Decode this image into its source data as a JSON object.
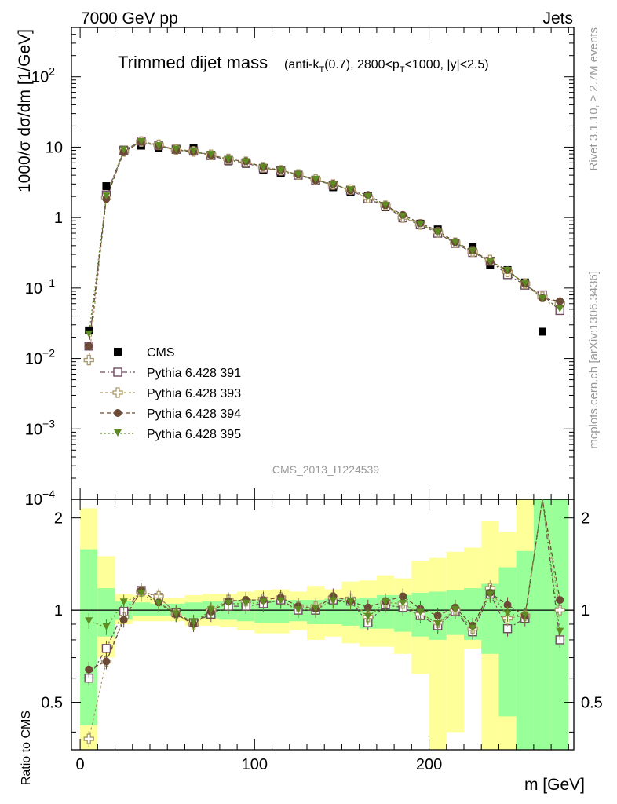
{
  "header": {
    "left": "7000 GeV pp",
    "right": "Jets"
  },
  "side_labels": {
    "rivet": "Rivet 3.1.10, ≥ 2.7M events",
    "mcplots": "mcplots.cern.ch [arXiv:1306.3436]"
  },
  "chart_data": {
    "type": "scatter",
    "title": "Trimmed dijet mass",
    "title_detail": "(anti-kT(0.7), 2800<pT<1000, |y|<2.5)",
    "analysis_id": "CMS_2013_I1224539",
    "xlabel": "m [GeV]",
    "ylabel": "1000/σ dσ/dm [1/GeV]",
    "ratio_ylabel": "Ratio to CMS",
    "xlim": [
      -5,
      283
    ],
    "ylim": [
      0.0001,
      500
    ],
    "yscale": "log",
    "ratio_ylim": [
      0.35,
      2.3
    ],
    "x_ticks": [
      0,
      100,
      200
    ],
    "y_ticks": [
      "10^-4",
      "10^-3",
      "10^-2",
      "10^-1",
      "1",
      "10",
      "10^2"
    ],
    "ratio_ticks": [
      "0.5",
      "1",
      "2"
    ],
    "legend_position": "bottom-left",
    "x": [
      5,
      15,
      25,
      35,
      45,
      55,
      65,
      75,
      85,
      95,
      105,
      115,
      125,
      135,
      145,
      155,
      165,
      175,
      185,
      195,
      205,
      215,
      225,
      235,
      245,
      255,
      265,
      275
    ],
    "series": [
      {
        "name": "CMS",
        "marker": "filled-square",
        "color": "#000000",
        "values": [
          0.025,
          2.8,
          9.2,
          10.5,
          9.8,
          9.5,
          9.6,
          7.8,
          6.3,
          5.8,
          4.8,
          4.3,
          4.0,
          3.4,
          2.7,
          2.3,
          2.05,
          1.4,
          0.98,
          0.82,
          0.68,
          0.44,
          0.38,
          0.21,
          0.18,
          0.12,
          0.024,
          0.06
        ]
      },
      {
        "name": "Pythia 6.428 391",
        "marker": "open-square",
        "color": "#6e4a5e",
        "values": [
          0.015,
          2.1,
          9.0,
          12.2,
          10.6,
          9.3,
          8.8,
          7.6,
          6.5,
          6.0,
          5.0,
          4.6,
          4.0,
          3.4,
          2.9,
          2.45,
          1.85,
          1.45,
          0.99,
          0.79,
          0.6,
          0.43,
          0.32,
          0.24,
          0.155,
          0.11,
          0.08,
          0.048
        ]
      },
      {
        "name": "Pythia 6.428 393",
        "marker": "open-cross",
        "color": "#a99766",
        "values": [
          0.0095,
          1.9,
          8.7,
          12.0,
          10.8,
          9.2,
          8.7,
          7.8,
          6.8,
          6.2,
          5.2,
          4.7,
          4.1,
          3.5,
          2.95,
          2.5,
          1.9,
          1.48,
          1.0,
          0.8,
          0.62,
          0.44,
          0.33,
          0.25,
          0.17,
          0.115,
          0.075,
          0.06
        ]
      },
      {
        "name": "Pythia 6.428 394",
        "marker": "filled-circle",
        "color": "#6b4a36",
        "values": [
          0.015,
          1.85,
          8.5,
          11.9,
          10.4,
          9.1,
          8.6,
          7.7,
          6.7,
          6.3,
          5.2,
          4.7,
          4.1,
          3.4,
          3.0,
          2.45,
          2.1,
          1.5,
          1.09,
          0.83,
          0.65,
          0.45,
          0.34,
          0.24,
          0.18,
          0.115,
          0.072,
          0.065
        ]
      },
      {
        "name": "Pythia 6.428 395",
        "marker": "filled-triangle-down",
        "color": "#5f8c22",
        "values": [
          0.022,
          2.0,
          9.0,
          11.8,
          10.3,
          9.2,
          8.7,
          7.8,
          6.6,
          6.1,
          5.1,
          4.6,
          4.0,
          3.45,
          2.9,
          2.45,
          1.95,
          1.48,
          1.03,
          0.8,
          0.61,
          0.44,
          0.33,
          0.235,
          0.175,
          0.115,
          0.07,
          0.05
        ]
      }
    ],
    "ratio_series": [
      {
        "name": "Pythia 6.428 391",
        "values": [
          0.6,
          0.75,
          0.99,
          1.16,
          1.1,
          0.98,
          0.91,
          0.97,
          1.03,
          1.03,
          1.05,
          1.08,
          1.0,
          1.0,
          1.08,
          1.07,
          0.91,
          1.04,
          1.02,
          0.96,
          0.89,
          0.99,
          0.85,
          1.13,
          0.87,
          0.94,
          2.5,
          0.8
        ]
      },
      {
        "name": "Pythia 6.428 393",
        "values": [
          0.38,
          0.68,
          0.95,
          1.15,
          1.11,
          0.97,
          0.9,
          1.0,
          1.08,
          1.07,
          1.09,
          1.1,
          1.03,
          1.03,
          1.1,
          1.09,
          0.95,
          1.06,
          1.05,
          0.97,
          0.91,
          1.0,
          0.87,
          1.18,
          0.94,
          0.96,
          2.5,
          1.0
        ]
      },
      {
        "name": "Pythia 6.428 394",
        "values": [
          0.64,
          0.68,
          0.93,
          1.16,
          1.06,
          0.97,
          0.9,
          0.99,
          1.07,
          1.08,
          1.08,
          1.1,
          1.03,
          1.01,
          1.11,
          1.07,
          1.02,
          1.07,
          1.11,
          1.01,
          0.96,
          1.02,
          0.89,
          1.14,
          1.04,
          0.96,
          2.6,
          1.08
        ]
      },
      {
        "name": "Pythia 6.428 395",
        "values": [
          0.92,
          0.88,
          1.06,
          1.13,
          1.05,
          0.97,
          0.91,
          1.0,
          1.05,
          1.05,
          1.06,
          1.07,
          1.0,
          1.01,
          1.07,
          1.06,
          0.95,
          1.06,
          1.05,
          0.98,
          0.9,
          1.0,
          0.87,
          1.12,
          0.97,
          0.96,
          2.6,
          0.85
        ]
      }
    ],
    "band_inner": {
      "lo": [
        0.42,
        0.82,
        0.93,
        0.96,
        0.96,
        0.96,
        0.94,
        0.94,
        0.93,
        0.92,
        0.91,
        0.91,
        0.92,
        0.9,
        0.9,
        0.89,
        0.87,
        0.87,
        0.85,
        0.82,
        0.8,
        0.83,
        0.8,
        0.72,
        0.45,
        0.3,
        0.3,
        0.3
      ],
      "hi": [
        1.58,
        1.18,
        1.07,
        1.06,
        1.05,
        1.05,
        1.06,
        1.07,
        1.07,
        1.08,
        1.08,
        1.08,
        1.08,
        1.08,
        1.09,
        1.09,
        1.1,
        1.12,
        1.12,
        1.14,
        1.15,
        1.16,
        1.18,
        1.22,
        1.38,
        1.56,
        3.0,
        3.0
      ]
    },
    "band_outer": {
      "lo": [
        0.35,
        0.7,
        0.9,
        0.92,
        0.92,
        0.92,
        0.89,
        0.89,
        0.88,
        0.86,
        0.84,
        0.84,
        0.86,
        0.8,
        0.82,
        0.78,
        0.76,
        0.76,
        0.72,
        0.62,
        0.3,
        0.4,
        0.75,
        0.3,
        0.3,
        0.3,
        0.3,
        0.3
      ],
      "hi": [
        2.15,
        1.5,
        1.13,
        1.12,
        1.1,
        1.1,
        1.12,
        1.13,
        1.13,
        1.15,
        1.16,
        1.17,
        1.15,
        1.2,
        1.17,
        1.24,
        1.25,
        1.3,
        1.27,
        1.45,
        1.48,
        1.55,
        1.6,
        1.95,
        1.8,
        2.3,
        3.0,
        3.0
      ]
    }
  }
}
